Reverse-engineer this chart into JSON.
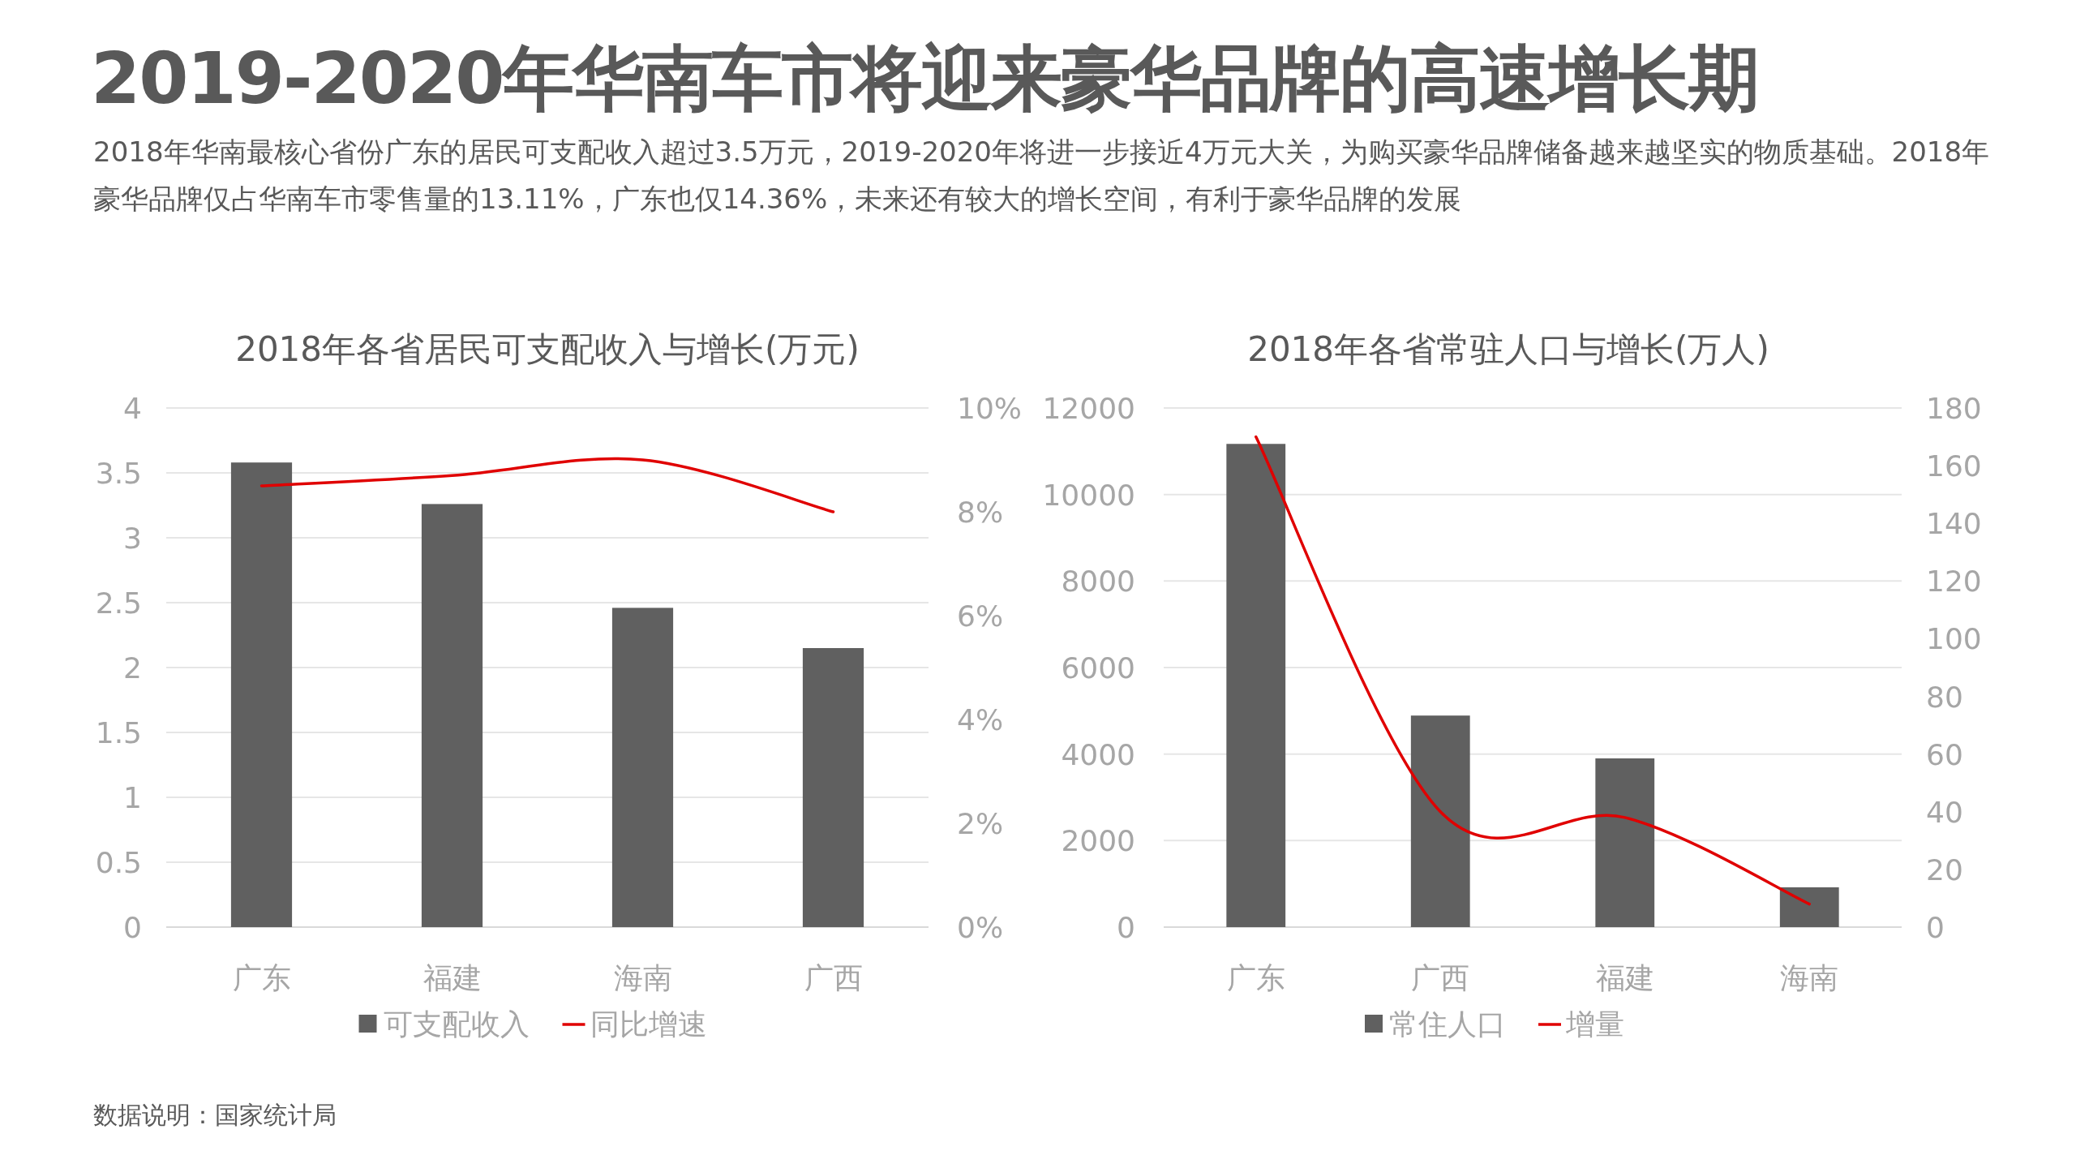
{
  "chart_data": [
    {
      "type": "other",
      "title": "2019-2020年华南车市将迎来豪华品牌的高速增长期",
      "subtitle": "2018年华南最核心省份广东的居民可支配收入超过3.5万元，2019-2020年将进一步接近4万元大关，为购买豪华品牌储备越来越坚实的物质基础。2018年豪华品牌仅占华南车市零售量的13.11%，广东也仅14.36%，未来还有较大的增长空间，有利于豪华品牌的发展",
      "annotations": [
        "数据说明：国家统计局"
      ]
    },
    {
      "type": "bar",
      "title": "2018年各省居民可支配收入与增长(万元)",
      "categories": [
        "广东",
        "福建",
        "海南",
        "广西"
      ],
      "series": [
        {
          "name": "可支配收入",
          "color": "#606060",
          "values": [
            3.58,
            3.26,
            2.46,
            2.15
          ]
        },
        {
          "name": "同比增速",
          "type": "line",
          "axis": "y2",
          "color": "#e00000",
          "values": [
            8.5,
            8.7,
            9.0,
            8.0
          ]
        }
      ],
      "ylim": [
        0,
        4
      ],
      "yticks": [
        0,
        0.5,
        1,
        1.5,
        2,
        2.5,
        3,
        3.5,
        4
      ],
      "y2lim": [
        0,
        10
      ],
      "y2ticks": [
        {
          "value": 0,
          "label": "0%"
        },
        {
          "value": 2,
          "label": "2%"
        },
        {
          "value": 4,
          "label": "4%"
        },
        {
          "value": 6,
          "label": "6%"
        },
        {
          "value": 8,
          "label": "8%"
        },
        {
          "value": 10,
          "label": "10%"
        }
      ],
      "grid": "y",
      "legend": "bottom"
    },
    {
      "type": "bar",
      "title": "2018年各省常驻人口与增长(万人)",
      "categories": [
        "广东",
        "广西",
        "福建",
        "海南"
      ],
      "series": [
        {
          "name": "常住人口",
          "color": "#606060",
          "values": [
            11170,
            4890,
            3900,
            920
          ]
        },
        {
          "name": "增量",
          "type": "line",
          "axis": "y2",
          "color": "#e00000",
          "values": [
            170,
            40,
            38,
            8
          ]
        }
      ],
      "ylim": [
        0,
        12000
      ],
      "yticks": [
        0,
        2000,
        4000,
        6000,
        8000,
        10000,
        12000
      ],
      "y2lim": [
        0,
        180
      ],
      "y2ticks": [
        0,
        20,
        40,
        60,
        80,
        100,
        120,
        140,
        160,
        180
      ],
      "grid": "y",
      "legend": "bottom"
    }
  ]
}
